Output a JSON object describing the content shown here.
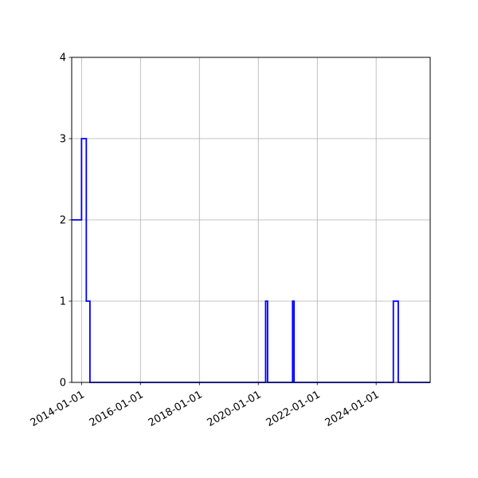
{
  "chart_data": {
    "type": "line",
    "step": true,
    "title": "",
    "xlabel": "",
    "ylabel": "",
    "xlim": [
      "2013-09-01",
      "2025-11-01"
    ],
    "ylim": [
      0,
      4
    ],
    "grid": true,
    "line_color": "#0000ff",
    "x_ticks": [
      "2014-01-01",
      "2016-01-01",
      "2018-01-01",
      "2020-01-01",
      "2022-01-01",
      "2024-01-01"
    ],
    "y_ticks": [
      "0",
      "1",
      "2",
      "3",
      "4"
    ],
    "series": [
      {
        "x": [
          "2013-09-01",
          "2013-12-01",
          "2014-01-01",
          "2014-02-15",
          "2014-03-01",
          "2014-04-15",
          "2020-04-01",
          "2020-04-25",
          "2021-03-01",
          "2021-03-20",
          "2024-08-01",
          "2024-10-01",
          "2025-11-01"
        ],
        "values": [
          2,
          2,
          3,
          3,
          1,
          0,
          1,
          0,
          1,
          0,
          1,
          0,
          0
        ]
      }
    ]
  }
}
